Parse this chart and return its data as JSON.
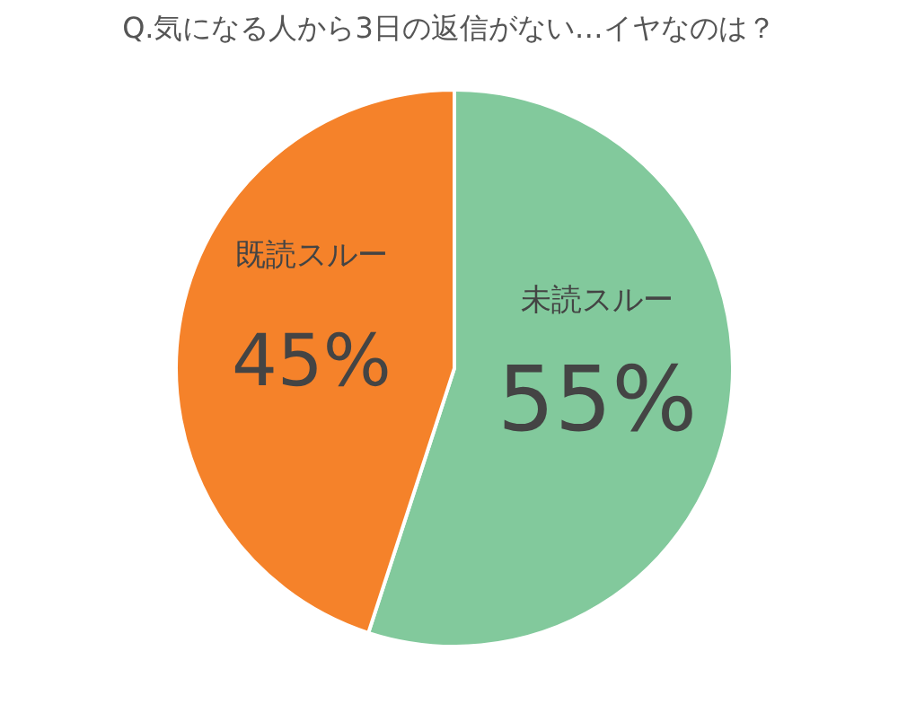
{
  "chart_data": {
    "type": "pie",
    "title": "Q.気になる人から3日の返信がない…イヤなのは？",
    "categories": [
      "未読スルー",
      "既読スルー"
    ],
    "values": [
      55,
      45
    ],
    "colors": [
      "#82c99c",
      "#f5822a"
    ],
    "value_labels": [
      "55%",
      "45%"
    ]
  }
}
